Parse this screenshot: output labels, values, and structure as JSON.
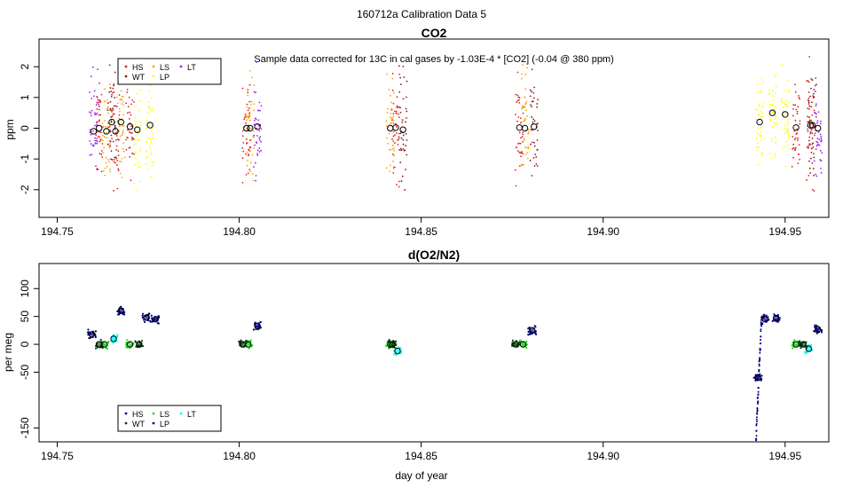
{
  "figure": {
    "title": "160712a   Calibration Data 5",
    "xlabel": "day of year"
  },
  "chart_data": [
    {
      "type": "scatter",
      "title": "CO2",
      "subtitle": "Sample data corrected for 13C in cal gases by -1.03E-4 * [CO2] (-0.04 @ 380 ppm)",
      "xlabel": "",
      "ylabel": "ppm",
      "xlim": [
        194.745,
        194.962
      ],
      "ylim": [
        -2.9,
        2.9
      ],
      "xticks": [
        "194.75",
        "194.80",
        "194.85",
        "194.90",
        "194.95"
      ],
      "yticks": [
        "-2",
        "-1",
        "0",
        "1",
        "2"
      ],
      "grid": false,
      "legend": {
        "placement": "top-left",
        "entries": [
          {
            "label": "HS",
            "color": "#dd2222"
          },
          {
            "label": "LS",
            "color": "#ffa500"
          },
          {
            "label": "LT",
            "color": "#a020f0"
          },
          {
            "label": "WT",
            "color": "#8b1a1a"
          },
          {
            "label": "LP",
            "color": "#ffff00"
          }
        ]
      },
      "series": [
        {
          "name": "HS",
          "color": "#dd2222",
          "x": [
            194.7615,
            194.766,
            194.77,
            194.802,
            194.843,
            194.877,
            194.953,
            194.957
          ],
          "y": [
            0.0,
            -0.1,
            0.05,
            0.0,
            0.02,
            0.02,
            0.02,
            0.1
          ]
        },
        {
          "name": "LS",
          "color": "#ffa500",
          "x": [
            194.7635,
            194.7675,
            194.803,
            194.8415,
            194.8785
          ],
          "y": [
            -0.1,
            0.2,
            0.0,
            0.0,
            0.0
          ]
        },
        {
          "name": "LT",
          "color": "#a020f0",
          "x": [
            194.76,
            194.805,
            194.959
          ],
          "y": [
            -0.1,
            0.05,
            0.0
          ]
        },
        {
          "name": "WT",
          "color": "#8b1a1a",
          "x": [
            194.765,
            194.845,
            194.881,
            194.9575
          ],
          "y": [
            0.2,
            -0.05,
            0.05,
            0.1
          ]
        },
        {
          "name": "LP",
          "color": "#ffff00",
          "x": [
            194.772,
            194.7755,
            194.943,
            194.9465,
            194.95
          ],
          "y": [
            -0.05,
            0.1,
            0.2,
            0.5,
            0.45
          ]
        }
      ]
    },
    {
      "type": "scatter",
      "title": "d(O2/N2)",
      "xlabel": "day of year",
      "ylabel": "per meg",
      "xlim": [
        194.745,
        194.962
      ],
      "ylim": [
        -175,
        145
      ],
      "xticks": [
        "194.75",
        "194.80",
        "194.85",
        "194.90",
        "194.95"
      ],
      "yticks": [
        "-150",
        "-50",
        "0",
        "50",
        "100"
      ],
      "grid": false,
      "legend": {
        "placement": "bottom-left",
        "entries": [
          {
            "label": "HS",
            "color": "#000080"
          },
          {
            "label": "LS",
            "color": "#22dd22"
          },
          {
            "label": "LT",
            "color": "#00ffff"
          },
          {
            "label": "WT",
            "color": "#004000"
          },
          {
            "label": "LP",
            "color": "#000080"
          }
        ]
      },
      "series": [
        {
          "name": "HS",
          "color": "#000080",
          "x": [
            194.7595,
            194.7675,
            194.7745,
            194.777,
            194.805,
            194.8805,
            194.9445,
            194.9475,
            194.959
          ],
          "y": [
            18,
            60,
            48,
            45,
            33,
            25,
            45,
            47,
            27
          ]
        },
        {
          "name": "LS",
          "color": "#22dd22",
          "x": [
            194.763,
            194.77,
            194.8025,
            194.8415,
            194.878,
            194.953
          ],
          "y": [
            0,
            0,
            0,
            0,
            0,
            0
          ]
        },
        {
          "name": "LT",
          "color": "#00ffff",
          "x": [
            194.7655,
            194.8435,
            194.9565
          ],
          "y": [
            10,
            -12,
            -8
          ]
        },
        {
          "name": "WT",
          "color": "#004000",
          "x": [
            194.7615,
            194.7725,
            194.801,
            194.842,
            194.876,
            194.955
          ],
          "y": [
            0,
            0,
            0,
            0,
            0,
            0
          ]
        },
        {
          "name": "LP",
          "color": "#000080",
          "x": [
            194.9425
          ],
          "y": [
            -60
          ]
        }
      ]
    }
  ]
}
